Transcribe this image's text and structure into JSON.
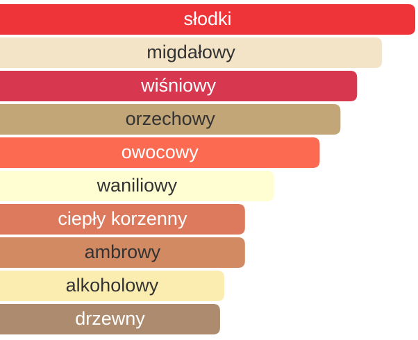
{
  "chart_data": {
    "type": "bar",
    "orientation": "horizontal",
    "categories": [
      "słodki",
      "migdałowy",
      "wiśniowy",
      "orzechowy",
      "owocowy",
      "waniliowy",
      "ciepły korzenny",
      "ambrowy",
      "alkoholowy",
      "drzewny"
    ],
    "values": [
      100,
      92,
      86,
      82,
      77,
      66,
      59,
      59,
      54,
      53
    ],
    "colors": [
      "#ee3439",
      "#f3e3c7",
      "#d7374f",
      "#c2a678",
      "#fc6b51",
      "#fffed2",
      "#dd7a5e",
      "#d28a63",
      "#fbedb0",
      "#ad8b6e"
    ],
    "xlim": [
      0,
      100
    ]
  }
}
